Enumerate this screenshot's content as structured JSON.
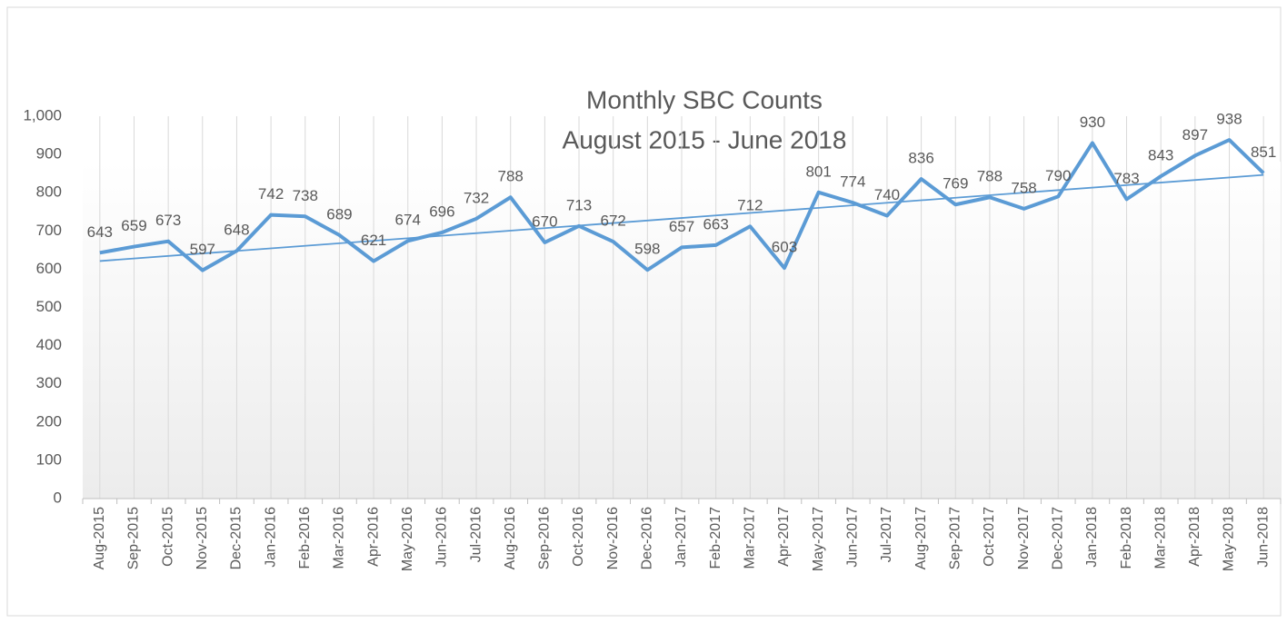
{
  "chart_data": {
    "type": "line",
    "title": "Monthly SBC Counts",
    "subtitle": "August 2015 - June 2018",
    "categories": [
      "Aug-2015",
      "Sep-2015",
      "Oct-2015",
      "Nov-2015",
      "Dec-2015",
      "Jan-2016",
      "Feb-2016",
      "Mar-2016",
      "Apr-2016",
      "May-2016",
      "Jun-2016",
      "Jul-2016",
      "Aug-2016",
      "Sep-2016",
      "Oct-2016",
      "Nov-2016",
      "Dec-2016",
      "Jan-2017",
      "Feb-2017",
      "Mar-2017",
      "Apr-2017",
      "May-2017",
      "Jun-2017",
      "Jul-2017",
      "Aug-2017",
      "Sep-2017",
      "Oct-2017",
      "Nov-2017",
      "Dec-2017",
      "Jan-2018",
      "Feb-2018",
      "Mar-2018",
      "Apr-2018",
      "May-2018",
      "Jun-2018"
    ],
    "series": [
      {
        "color": "#5b9bd5",
        "values": [
          643,
          659,
          673,
          597,
          648,
          742,
          738,
          689,
          621,
          674,
          696,
          732,
          788,
          670,
          713,
          672,
          598,
          657,
          663,
          712,
          603,
          801,
          774,
          740,
          836,
          769,
          788,
          758,
          790,
          930,
          783,
          843,
          897,
          938,
          851
        ]
      }
    ],
    "ylim": [
      0,
      1000
    ],
    "yticks": [
      0,
      100,
      200,
      300,
      400,
      500,
      600,
      700,
      800,
      900,
      {
        "value": 1000,
        "label": "1,000"
      }
    ],
    "grid": "x",
    "trendline": "linear",
    "data_labels": true
  }
}
